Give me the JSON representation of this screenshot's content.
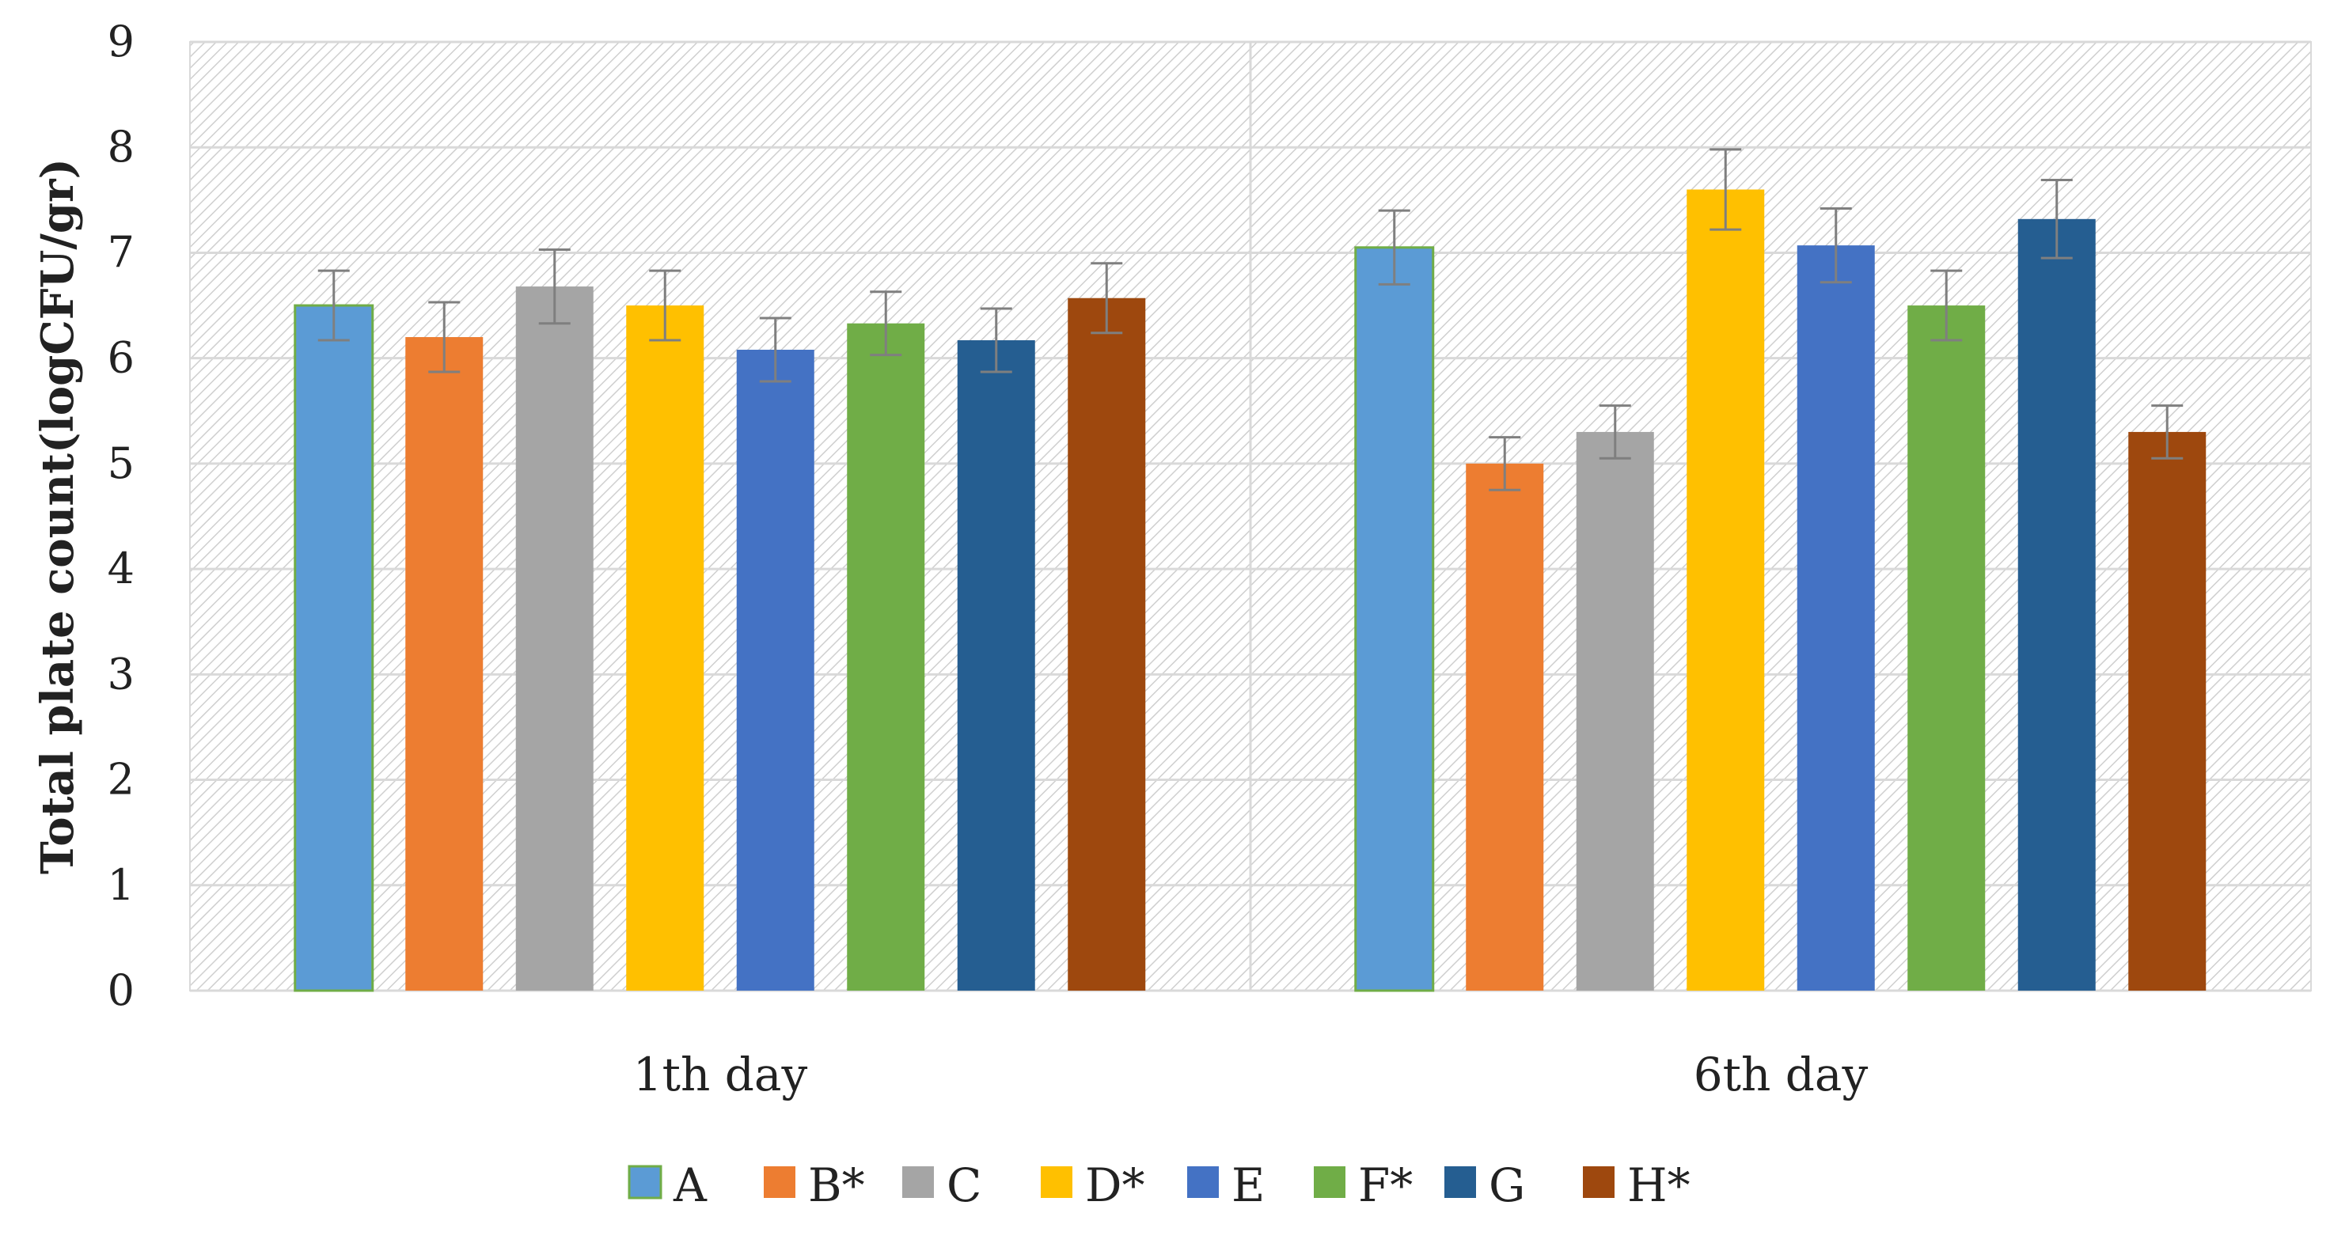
{
  "chart_data": {
    "type": "bar",
    "title": "",
    "xlabel": "",
    "ylabel": "Total plate count(logCFU/gr)",
    "ylim": [
      0,
      9
    ],
    "yticks": [
      "0",
      "1",
      "2",
      "3",
      "4",
      "5",
      "6",
      "7",
      "8",
      "9"
    ],
    "grid": true,
    "legend_position": "bottom",
    "categories": [
      "1th day",
      "6th day"
    ],
    "series": [
      {
        "name": "A",
        "color": "#5b9bd5",
        "values": [
          6.5,
          7.05
        ],
        "errors": [
          0.33,
          0.35
        ]
      },
      {
        "name": "B*",
        "color": "#ed7d31",
        "values": [
          6.2,
          5.0
        ],
        "errors": [
          0.33,
          0.25
        ]
      },
      {
        "name": "C",
        "color": "#a5a5a5",
        "values": [
          6.68,
          5.3
        ],
        "errors": [
          0.35,
          0.25
        ]
      },
      {
        "name": "D*",
        "color": "#ffc000",
        "values": [
          6.5,
          7.6
        ],
        "errors": [
          0.33,
          0.38
        ]
      },
      {
        "name": "E",
        "color": "#4472c4",
        "values": [
          6.08,
          7.07
        ],
        "errors": [
          0.3,
          0.35
        ]
      },
      {
        "name": "F*",
        "color": "#70ad47",
        "values": [
          6.33,
          6.5
        ],
        "errors": [
          0.3,
          0.33
        ]
      },
      {
        "name": "G",
        "color": "#255e91",
        "values": [
          6.17,
          7.32
        ],
        "errors": [
          0.3,
          0.37
        ]
      },
      {
        "name": "H*",
        "color": "#9e480e",
        "values": [
          6.57,
          5.3
        ],
        "errors": [
          0.33,
          0.25
        ]
      }
    ]
  }
}
